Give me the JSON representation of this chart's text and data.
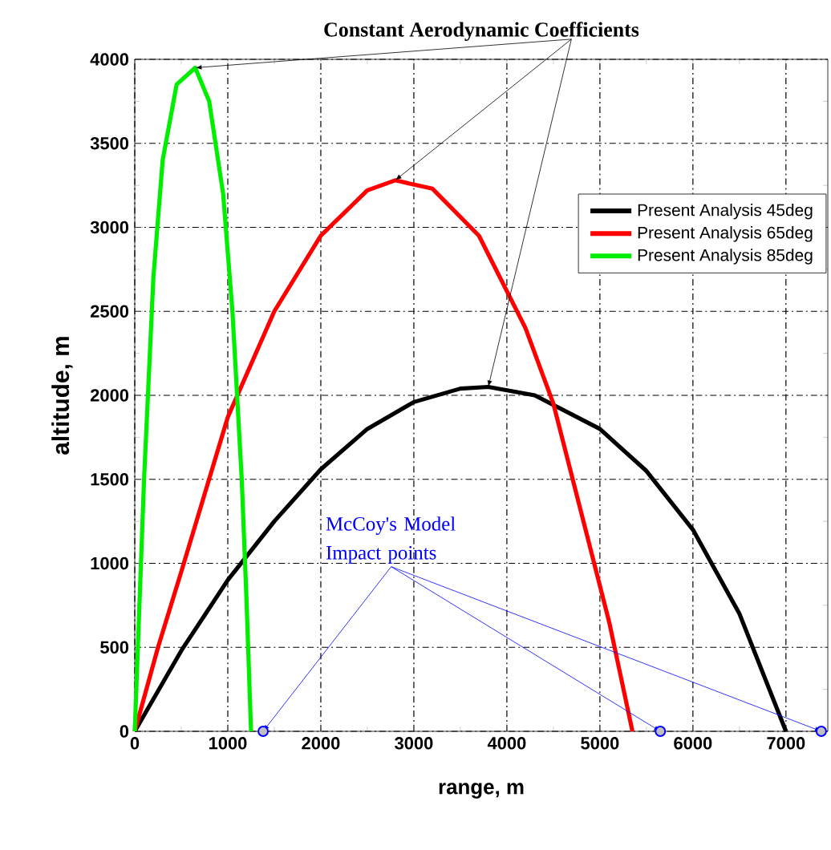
{
  "chart_data": {
    "type": "line",
    "title": "Constant Aerodynamic Coefficients",
    "xlabel": "range, m",
    "ylabel": "altitude, m",
    "xlim": [
      0,
      7450
    ],
    "ylim": [
      0,
      4000
    ],
    "xticks": [
      0,
      1000,
      2000,
      3000,
      4000,
      5000,
      6000,
      7000
    ],
    "yticks": [
      0,
      500,
      1000,
      1500,
      2000,
      2500,
      3000,
      3500,
      4000
    ],
    "grid": true,
    "legend": "top right",
    "marker": "none",
    "line_style": "solid",
    "annotations": [
      {
        "text": "McCoy's Model Impact points",
        "x": 1380,
        "y": 0
      }
    ],
    "series": [
      {
        "name": "Present Analysis 45deg",
        "color": "#000000",
        "x": [
          0,
          500,
          1000,
          1500,
          2000,
          2500,
          3000,
          3500,
          3800,
          4300,
          5000,
          5500,
          6000,
          6500,
          7000
        ],
        "values": [
          0,
          480,
          900,
          1250,
          1560,
          1800,
          1960,
          2040,
          2050,
          2000,
          1800,
          1550,
          1200,
          700,
          0
        ]
      },
      {
        "name": "Present Analysis 65deg",
        "color": "#ff0000",
        "x": [
          0,
          250,
          500,
          1000,
          1500,
          2000,
          2500,
          2800,
          3200,
          3700,
          4200,
          4500,
          4800,
          5100,
          5350
        ],
        "values": [
          0,
          500,
          950,
          1870,
          2500,
          2950,
          3220,
          3280,
          3230,
          2950,
          2400,
          1950,
          1300,
          650,
          0
        ]
      },
      {
        "name": "Present Analysis 85deg",
        "color": "#00ee00",
        "x": [
          0,
          100,
          200,
          300,
          450,
          650,
          800,
          950,
          1050,
          1150,
          1200,
          1250
        ],
        "values": [
          0,
          1500,
          2700,
          3400,
          3850,
          3950,
          3750,
          3200,
          2500,
          1500,
          800,
          0
        ]
      },
      {
        "type": "scatter",
        "color": "#0000ff",
        "marker": "circle",
        "x": [
          1380,
          5650,
          7380
        ],
        "values": [
          0,
          0,
          0
        ]
      }
    ]
  }
}
